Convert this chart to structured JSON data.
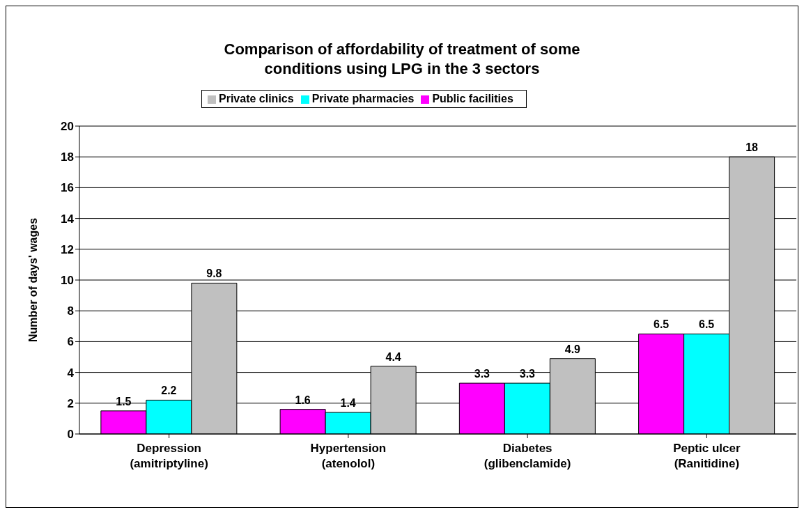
{
  "chart_data": {
    "type": "bar",
    "title": "Comparison of affordability of treatment of some conditions using LPG in the 3 sectors",
    "ylabel": "Number of days' wages",
    "categories": [
      "Depression\n(amitriptyline)",
      "Hypertension\n(atenolol)",
      "Diabetes\n(glibenclamide)",
      "Peptic ulcer\n(Ranitidine)"
    ],
    "series": [
      {
        "name": "Public facilities",
        "color": "#ff00ff",
        "values": [
          1.5,
          1.6,
          3.3,
          6.5
        ]
      },
      {
        "name": "Private pharmacies",
        "color": "#00ffff",
        "values": [
          2.2,
          1.4,
          3.3,
          6.5
        ]
      },
      {
        "name": "Private clinics",
        "color": "#c0c0c0",
        "values": [
          9.8,
          4.4,
          4.9,
          18
        ]
      }
    ],
    "ylim": [
      0,
      20
    ],
    "yticks": [
      0,
      2,
      4,
      6,
      8,
      10,
      12,
      14,
      16,
      18,
      20
    ],
    "grid": "y",
    "legend": "top",
    "data_labels": true
  }
}
